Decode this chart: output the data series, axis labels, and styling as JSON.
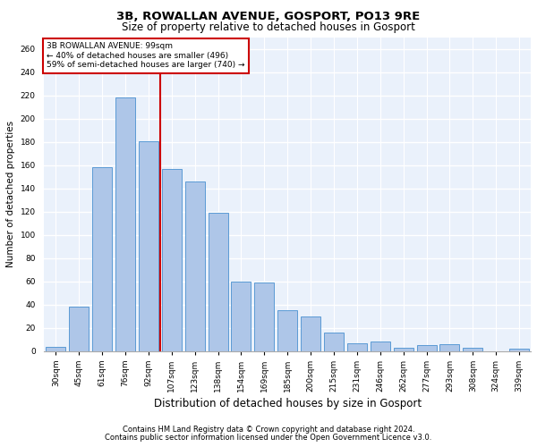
{
  "title1": "3B, ROWALLAN AVENUE, GOSPORT, PO13 9RE",
  "title2": "Size of property relative to detached houses in Gosport",
  "xlabel": "Distribution of detached houses by size in Gosport",
  "ylabel": "Number of detached properties",
  "categories": [
    "30sqm",
    "45sqm",
    "61sqm",
    "76sqm",
    "92sqm",
    "107sqm",
    "123sqm",
    "138sqm",
    "154sqm",
    "169sqm",
    "185sqm",
    "200sqm",
    "215sqm",
    "231sqm",
    "246sqm",
    "262sqm",
    "277sqm",
    "293sqm",
    "308sqm",
    "324sqm",
    "339sqm"
  ],
  "values": [
    4,
    38,
    158,
    218,
    181,
    157,
    146,
    119,
    60,
    59,
    35,
    30,
    16,
    7,
    8,
    3,
    5,
    6,
    3,
    0,
    2
  ],
  "bar_color": "#aec6e8",
  "bar_edge_color": "#5b9bd5",
  "bar_width": 0.85,
  "vline_x": 4.5,
  "vline_color": "#cc0000",
  "annotation_text": "3B ROWALLAN AVENUE: 99sqm\n← 40% of detached houses are smaller (496)\n59% of semi-detached houses are larger (740) →",
  "annotation_box_color": "#cc0000",
  "ylim": [
    0,
    270
  ],
  "yticks": [
    0,
    20,
    40,
    60,
    80,
    100,
    120,
    140,
    160,
    180,
    200,
    220,
    240,
    260
  ],
  "footer1": "Contains HM Land Registry data © Crown copyright and database right 2024.",
  "footer2": "Contains public sector information licensed under the Open Government Licence v3.0.",
  "bg_color": "#eaf1fb",
  "grid_color": "#ffffff",
  "title1_fontsize": 9.5,
  "title2_fontsize": 8.5,
  "xlabel_fontsize": 8.5,
  "ylabel_fontsize": 7.5,
  "tick_fontsize": 6.5,
  "annot_fontsize": 6.5,
  "footer_fontsize": 6.0
}
